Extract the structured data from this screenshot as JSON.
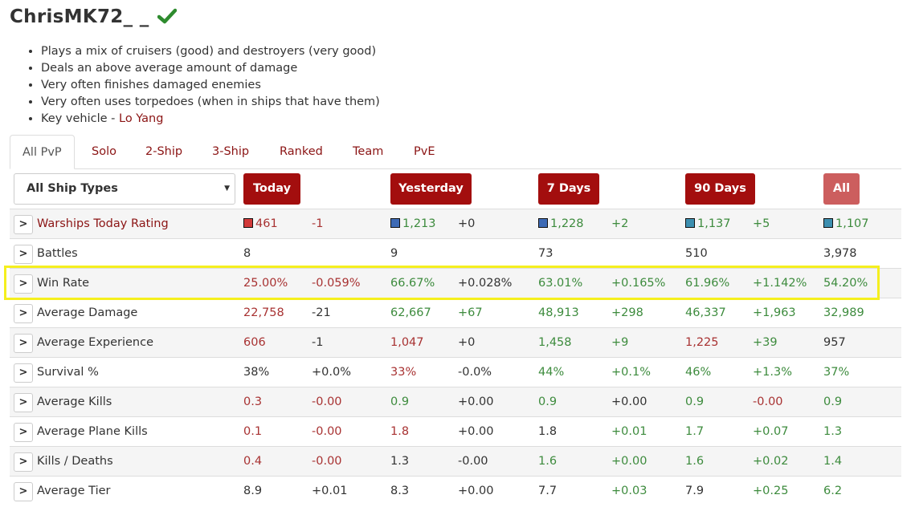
{
  "player": {
    "name": "ChrisMK72_ _"
  },
  "summary": {
    "bullets": [
      "Plays a mix of cruisers (good) and destroyers (very good)",
      "Deals an above average amount of damage",
      "Very often finishes damaged enemies",
      "Very often uses torpedoes (when in ships that have them)"
    ],
    "key_vehicle_prefix": "Key vehicle - ",
    "key_vehicle": "Lo Yang"
  },
  "tabs": [
    "All PvP",
    "Solo",
    "2-Ship",
    "3-Ship",
    "Ranked",
    "Team",
    "PvE"
  ],
  "filter": {
    "selected": "All Ship Types"
  },
  "periods": [
    "Today",
    "Yesterday",
    "7 Days",
    "90 Days",
    "All"
  ],
  "colors": {
    "accent": "#a30e0e",
    "positive": "#3d8b3d",
    "negative": "#a83232",
    "highlight": "#f5ef1e"
  },
  "rows": [
    {
      "label": "Warships Today Rating",
      "values": [
        {
          "v": "461",
          "c": "r",
          "sq": "#d23a3a"
        },
        {
          "v": "-1",
          "c": "r"
        },
        {
          "v": "1,213",
          "c": "g",
          "sq": "#3d6ab5"
        },
        {
          "v": "+0",
          "c": "k"
        },
        {
          "v": "1,228",
          "c": "g",
          "sq": "#3d6ab5"
        },
        {
          "v": "+2",
          "c": "g"
        },
        {
          "v": "1,137",
          "c": "g",
          "sq": "#3d8fb0"
        },
        {
          "v": "+5",
          "c": "g"
        },
        {
          "v": "1,107",
          "c": "g",
          "sq": "#3d8fb0"
        }
      ]
    },
    {
      "label": "Battles",
      "values": [
        {
          "v": "8",
          "c": "k"
        },
        {
          "v": "",
          "c": "k"
        },
        {
          "v": "9",
          "c": "k"
        },
        {
          "v": "",
          "c": "k"
        },
        {
          "v": "73",
          "c": "k"
        },
        {
          "v": "",
          "c": "k"
        },
        {
          "v": "510",
          "c": "k"
        },
        {
          "v": "",
          "c": "k"
        },
        {
          "v": "3,978",
          "c": "k"
        }
      ]
    },
    {
      "label": "Win Rate",
      "values": [
        {
          "v": "25.00%",
          "c": "r"
        },
        {
          "v": "-0.059%",
          "c": "r"
        },
        {
          "v": "66.67%",
          "c": "g"
        },
        {
          "v": "+0.028%",
          "c": "k"
        },
        {
          "v": "63.01%",
          "c": "g"
        },
        {
          "v": "+0.165%",
          "c": "g"
        },
        {
          "v": "61.96%",
          "c": "g"
        },
        {
          "v": "+1.142%",
          "c": "g"
        },
        {
          "v": "54.20%",
          "c": "g"
        }
      ]
    },
    {
      "label": "Average Damage",
      "values": [
        {
          "v": "22,758",
          "c": "r"
        },
        {
          "v": "-21",
          "c": "k"
        },
        {
          "v": "62,667",
          "c": "g"
        },
        {
          "v": "+67",
          "c": "g"
        },
        {
          "v": "48,913",
          "c": "g"
        },
        {
          "v": "+298",
          "c": "g"
        },
        {
          "v": "46,337",
          "c": "g"
        },
        {
          "v": "+1,963",
          "c": "g"
        },
        {
          "v": "32,989",
          "c": "g"
        }
      ]
    },
    {
      "label": "Average Experience",
      "values": [
        {
          "v": "606",
          "c": "r"
        },
        {
          "v": "-1",
          "c": "k"
        },
        {
          "v": "1,047",
          "c": "r"
        },
        {
          "v": "+0",
          "c": "k"
        },
        {
          "v": "1,458",
          "c": "g"
        },
        {
          "v": "+9",
          "c": "g"
        },
        {
          "v": "1,225",
          "c": "r"
        },
        {
          "v": "+39",
          "c": "g"
        },
        {
          "v": "957",
          "c": "k"
        }
      ]
    },
    {
      "label": "Survival %",
      "values": [
        {
          "v": "38%",
          "c": "k"
        },
        {
          "v": "+0.0%",
          "c": "k"
        },
        {
          "v": "33%",
          "c": "r"
        },
        {
          "v": "-0.0%",
          "c": "k"
        },
        {
          "v": "44%",
          "c": "g"
        },
        {
          "v": "+0.1%",
          "c": "g"
        },
        {
          "v": "46%",
          "c": "g"
        },
        {
          "v": "+1.3%",
          "c": "g"
        },
        {
          "v": "37%",
          "c": "g"
        }
      ]
    },
    {
      "label": "Average Kills",
      "values": [
        {
          "v": "0.3",
          "c": "r"
        },
        {
          "v": "-0.00",
          "c": "r"
        },
        {
          "v": "0.9",
          "c": "g"
        },
        {
          "v": "+0.00",
          "c": "k"
        },
        {
          "v": "0.9",
          "c": "g"
        },
        {
          "v": "+0.00",
          "c": "k"
        },
        {
          "v": "0.9",
          "c": "g"
        },
        {
          "v": "-0.00",
          "c": "r"
        },
        {
          "v": "0.9",
          "c": "g"
        }
      ]
    },
    {
      "label": "Average Plane Kills",
      "values": [
        {
          "v": "0.1",
          "c": "r"
        },
        {
          "v": "-0.00",
          "c": "r"
        },
        {
          "v": "1.8",
          "c": "r"
        },
        {
          "v": "+0.00",
          "c": "k"
        },
        {
          "v": "1.8",
          "c": "k"
        },
        {
          "v": "+0.01",
          "c": "g"
        },
        {
          "v": "1.7",
          "c": "g"
        },
        {
          "v": "+0.07",
          "c": "g"
        },
        {
          "v": "1.3",
          "c": "g"
        }
      ]
    },
    {
      "label": "Kills / Deaths",
      "values": [
        {
          "v": "0.4",
          "c": "r"
        },
        {
          "v": "-0.00",
          "c": "r"
        },
        {
          "v": "1.3",
          "c": "k"
        },
        {
          "v": "-0.00",
          "c": "k"
        },
        {
          "v": "1.6",
          "c": "g"
        },
        {
          "v": "+0.00",
          "c": "g"
        },
        {
          "v": "1.6",
          "c": "g"
        },
        {
          "v": "+0.02",
          "c": "g"
        },
        {
          "v": "1.4",
          "c": "g"
        }
      ]
    },
    {
      "label": "Average Tier",
      "values": [
        {
          "v": "8.9",
          "c": "k"
        },
        {
          "v": "+0.01",
          "c": "k"
        },
        {
          "v": "8.3",
          "c": "k"
        },
        {
          "v": "+0.00",
          "c": "k"
        },
        {
          "v": "7.7",
          "c": "k"
        },
        {
          "v": "+0.03",
          "c": "g"
        },
        {
          "v": "7.9",
          "c": "k"
        },
        {
          "v": "+0.25",
          "c": "g"
        },
        {
          "v": "6.2",
          "c": "g"
        }
      ]
    }
  ],
  "highlighted_row": "Win Rate"
}
